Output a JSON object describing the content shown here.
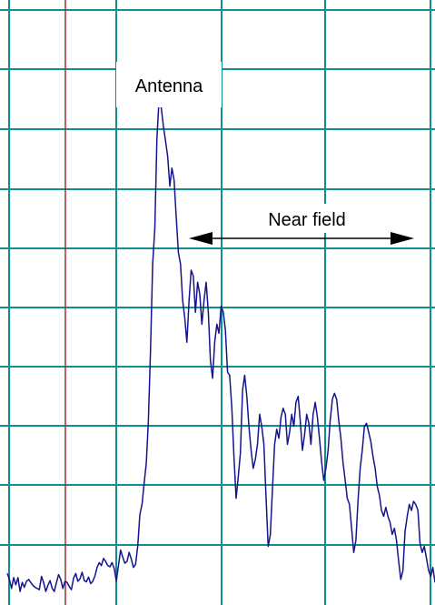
{
  "colors": {
    "background": "#ffffff",
    "grid": "#118f8f",
    "marker": "#a0302a",
    "trace": "#14148c",
    "text": "#000000"
  },
  "chart_data": {
    "type": "line",
    "title": "",
    "xlabel": "",
    "ylabel": "",
    "grid": true,
    "legend": "none",
    "xlim": [
      0,
      100
    ],
    "ylim": [
      0,
      100
    ],
    "series": [
      {
        "points": [
          [
            0.0,
            4.5
          ],
          [
            0.5,
            3.5
          ],
          [
            1.0,
            2.0
          ],
          [
            1.5,
            3.8
          ],
          [
            2.0,
            2.6
          ],
          [
            2.5,
            3.8
          ],
          [
            3.0,
            1.5
          ],
          [
            3.5,
            3.0
          ],
          [
            4.0,
            2.2
          ],
          [
            4.5,
            3.2
          ],
          [
            5.0,
            3.5
          ],
          [
            5.5,
            3.0
          ],
          [
            6.0,
            2.5
          ],
          [
            6.5,
            2.2
          ],
          [
            7.0,
            2.0
          ],
          [
            7.5,
            1.8
          ],
          [
            8.0,
            4.0
          ],
          [
            8.5,
            3.0
          ],
          [
            9.0,
            1.5
          ],
          [
            9.5,
            2.5
          ],
          [
            10.0,
            3.3
          ],
          [
            10.5,
            2.0
          ],
          [
            11.0,
            1.5
          ],
          [
            11.5,
            3.0
          ],
          [
            12.0,
            4.3
          ],
          [
            12.5,
            3.5
          ],
          [
            13.0,
            2.0
          ],
          [
            13.5,
            3.2
          ],
          [
            14.0,
            3.0
          ],
          [
            14.5,
            2.3
          ],
          [
            15.0,
            1.8
          ],
          [
            15.5,
            3.7
          ],
          [
            16.0,
            4.5
          ],
          [
            16.5,
            3.2
          ],
          [
            17.0,
            3.6
          ],
          [
            17.5,
            4.7
          ],
          [
            18.0,
            3.3
          ],
          [
            18.5,
            3.1
          ],
          [
            19.0,
            3.9
          ],
          [
            19.5,
            2.8
          ],
          [
            20.0,
            3.2
          ],
          [
            20.5,
            4.1
          ],
          [
            21.0,
            5.5
          ],
          [
            21.5,
            6.3
          ],
          [
            22.0,
            5.8
          ],
          [
            22.5,
            7.0
          ],
          [
            23.0,
            6.5
          ],
          [
            23.5,
            5.8
          ],
          [
            24.0,
            5.6
          ],
          [
            24.5,
            6.3
          ],
          [
            25.0,
            5.3
          ],
          [
            25.5,
            3.2
          ],
          [
            26.0,
            5.9
          ],
          [
            26.5,
            8.4
          ],
          [
            27.0,
            7.2
          ],
          [
            27.5,
            6.2
          ],
          [
            28.0,
            6.5
          ],
          [
            28.5,
            8.0
          ],
          [
            29.0,
            6.9
          ],
          [
            29.5,
            5.5
          ],
          [
            30.0,
            6.0
          ],
          [
            30.5,
            9.1
          ],
          [
            31.0,
            14.3
          ],
          [
            31.5,
            16.0
          ],
          [
            32.0,
            19.5
          ],
          [
            32.5,
            22.9
          ],
          [
            33.0,
            30.0
          ],
          [
            33.5,
            42.0
          ],
          [
            34.0,
            56.0
          ],
          [
            34.5,
            62.0
          ],
          [
            35.0,
            77.0
          ],
          [
            35.5,
            83.5
          ],
          [
            36.0,
            82.0
          ],
          [
            36.5,
            79.0
          ],
          [
            37.0,
            76.5
          ],
          [
            37.5,
            74.0
          ],
          [
            38.0,
            69.0
          ],
          [
            38.5,
            72.0
          ],
          [
            39.0,
            70.0
          ],
          [
            39.5,
            64.0
          ],
          [
            40.0,
            58.0
          ],
          [
            40.5,
            56.0
          ],
          [
            41.0,
            50.0
          ],
          [
            41.5,
            47.0
          ],
          [
            42.0,
            43.0
          ],
          [
            42.5,
            50.0
          ],
          [
            43.0,
            55.0
          ],
          [
            43.5,
            54.0
          ],
          [
            44.0,
            48.0
          ],
          [
            44.5,
            53.0
          ],
          [
            45.0,
            51.0
          ],
          [
            45.5,
            46.0
          ],
          [
            46.0,
            50.0
          ],
          [
            46.5,
            53.0
          ],
          [
            47.0,
            48.0
          ],
          [
            47.5,
            40.0
          ],
          [
            48.0,
            37.0
          ],
          [
            48.5,
            43.0
          ],
          [
            49.0,
            46.0
          ],
          [
            49.5,
            44.5
          ],
          [
            50.0,
            49.0
          ],
          [
            50.5,
            48.0
          ],
          [
            51.0,
            45.0
          ],
          [
            51.5,
            38.0
          ],
          [
            52.0,
            37.5
          ],
          [
            52.5,
            32.0
          ],
          [
            53.0,
            24.0
          ],
          [
            53.5,
            17.0
          ],
          [
            54.0,
            20.5
          ],
          [
            54.5,
            24.5
          ],
          [
            55.0,
            35.0
          ],
          [
            55.5,
            37.5
          ],
          [
            56.0,
            34.0
          ],
          [
            56.5,
            29.0
          ],
          [
            57.0,
            25.0
          ],
          [
            57.5,
            22.0
          ],
          [
            58.0,
            23.5
          ],
          [
            58.5,
            26.0
          ],
          [
            59.0,
            31.0
          ],
          [
            59.5,
            29.0
          ],
          [
            60.0,
            26.0
          ],
          [
            60.5,
            17.0
          ],
          [
            61.0,
            9.0
          ],
          [
            61.5,
            11.0
          ],
          [
            62.0,
            18.5
          ],
          [
            62.5,
            26.0
          ],
          [
            63.0,
            28.5
          ],
          [
            63.5,
            27.0
          ],
          [
            64.0,
            30.5
          ],
          [
            64.5,
            32.0
          ],
          [
            65.0,
            31.0
          ],
          [
            65.5,
            26.0
          ],
          [
            66.0,
            28.0
          ],
          [
            66.5,
            31.0
          ],
          [
            67.0,
            29.0
          ],
          [
            67.5,
            33.0
          ],
          [
            68.0,
            34.0
          ],
          [
            68.5,
            30.0
          ],
          [
            69.0,
            25.0
          ],
          [
            69.5,
            27.5
          ],
          [
            70.0,
            31.0
          ],
          [
            70.5,
            29.5
          ],
          [
            71.0,
            26.0
          ],
          [
            71.5,
            31.0
          ],
          [
            72.0,
            33.0
          ],
          [
            72.5,
            30.5
          ],
          [
            73.0,
            27.0
          ],
          [
            73.5,
            23.0
          ],
          [
            74.0,
            20.0
          ],
          [
            74.5,
            22.0
          ],
          [
            75.0,
            25.0
          ],
          [
            75.5,
            30.0
          ],
          [
            76.0,
            33.5
          ],
          [
            76.5,
            34.5
          ],
          [
            77.0,
            33.5
          ],
          [
            77.5,
            30.0
          ],
          [
            78.0,
            27.0
          ],
          [
            78.5,
            23.0
          ],
          [
            79.0,
            20.0
          ],
          [
            79.5,
            17.0
          ],
          [
            80.0,
            16.0
          ],
          [
            80.5,
            12.0
          ],
          [
            81.0,
            8.0
          ],
          [
            81.5,
            10.0
          ],
          [
            82.0,
            16.5
          ],
          [
            82.5,
            22.0
          ],
          [
            83.0,
            25.0
          ],
          [
            83.5,
            29.0
          ],
          [
            84.0,
            29.5
          ],
          [
            84.5,
            28.0
          ],
          [
            85.0,
            26.5
          ],
          [
            85.5,
            24.0
          ],
          [
            86.0,
            22.0
          ],
          [
            86.5,
            19.0
          ],
          [
            87.0,
            17.5
          ],
          [
            87.5,
            15.0
          ],
          [
            88.0,
            14.0
          ],
          [
            88.5,
            15.5
          ],
          [
            89.0,
            14.0
          ],
          [
            89.5,
            13.0
          ],
          [
            90.0,
            11.0
          ],
          [
            90.5,
            12.0
          ],
          [
            91.0,
            10.0
          ],
          [
            91.5,
            6.5
          ],
          [
            92.0,
            3.5
          ],
          [
            92.5,
            5.0
          ],
          [
            93.0,
            11.5
          ],
          [
            93.5,
            14.0
          ],
          [
            94.0,
            16.0
          ],
          [
            94.5,
            15.0
          ],
          [
            95.0,
            16.5
          ],
          [
            95.5,
            16.0
          ],
          [
            96.0,
            15.0
          ],
          [
            96.5,
            9.5
          ],
          [
            97.0,
            8.0
          ],
          [
            97.5,
            9.0
          ],
          [
            98.0,
            7.0
          ],
          [
            98.5,
            5.0
          ],
          [
            99.0,
            4.0
          ],
          [
            99.5,
            5.5
          ],
          [
            100.0,
            3.0
          ]
        ]
      }
    ],
    "annotations": [
      {
        "text": "Antenna"
      },
      {
        "text": "Near field"
      }
    ]
  }
}
